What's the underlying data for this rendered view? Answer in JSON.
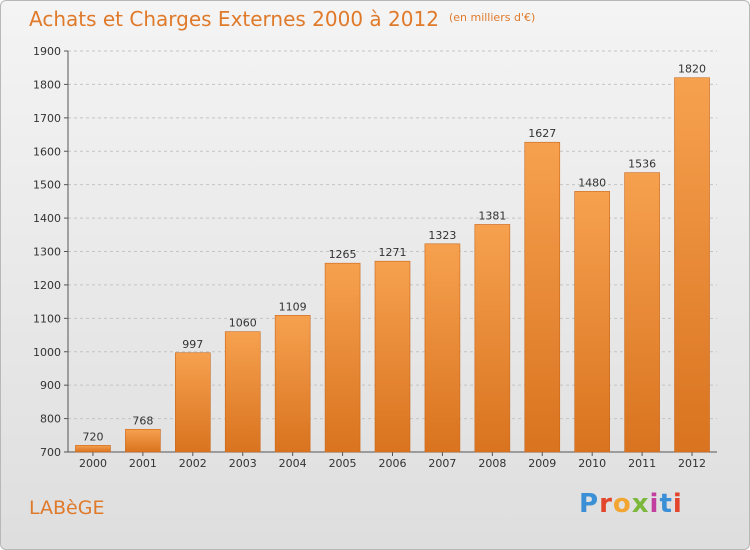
{
  "header": {
    "title": "Achats et Charges Externes 2000 à 2012",
    "unit": "(en milliers d'€)"
  },
  "footer": {
    "city": "LABèGE",
    "brand": "Proxiti",
    "brand_colors": [
      "#3a8fd6",
      "#e2452b",
      "#f2a531",
      "#7cb83b",
      "#c23fa0",
      "#3a8fd6",
      "#e2452b"
    ]
  },
  "colors": {
    "accent": "#e07a2b",
    "bar_light": "#f6a14f",
    "bar_dark": "#d9731f"
  },
  "chart_data": {
    "type": "bar",
    "categories": [
      "2000",
      "2001",
      "2002",
      "2003",
      "2004",
      "2005",
      "2006",
      "2007",
      "2008",
      "2009",
      "2010",
      "2011",
      "2012"
    ],
    "values": [
      720,
      768,
      997,
      1060,
      1109,
      1265,
      1271,
      1323,
      1381,
      1627,
      1480,
      1536,
      1820
    ],
    "title": "Achats et Charges Externes 2000 à 2012",
    "subtitle": "(en milliers d'€)",
    "xlabel": "",
    "ylabel": "",
    "ylim": [
      700,
      1900
    ],
    "yticks": [
      700,
      800,
      900,
      1000,
      1100,
      1200,
      1300,
      1400,
      1500,
      1600,
      1700,
      1800,
      1900
    ],
    "grid": true,
    "data_labels": true
  }
}
